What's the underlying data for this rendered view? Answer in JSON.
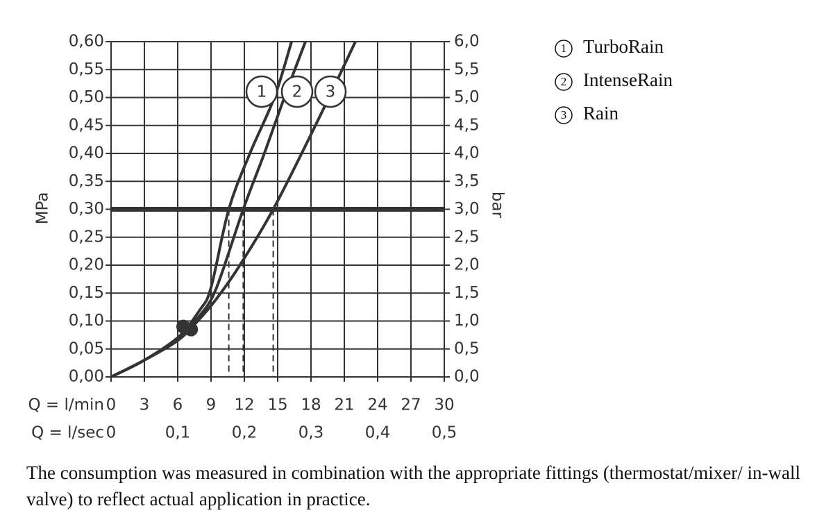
{
  "chart_data": {
    "type": "line",
    "color": "#333333",
    "xlabel": "Q = l/min",
    "x2label": "Q = l/sec",
    "ylabel": "MPa",
    "y2label": "bar",
    "xlim": [
      0,
      30
    ],
    "xticks": [
      0,
      3,
      6,
      9,
      12,
      15,
      18,
      21,
      24,
      27,
      30
    ],
    "x2lim": [
      0,
      0.5
    ],
    "x2ticks": [
      {
        "value": 0,
        "label": "0"
      },
      {
        "value": 0.1,
        "label": "0,1"
      },
      {
        "value": 0.2,
        "label": "0,2"
      },
      {
        "value": 0.3,
        "label": "0,3"
      },
      {
        "value": 0.4,
        "label": "0,4"
      },
      {
        "value": 0.5,
        "label": "0,5"
      }
    ],
    "ylim": [
      0,
      0.6
    ],
    "yticks": [
      {
        "value": 0,
        "label": "0,00"
      },
      {
        "value": 0.05,
        "label": "0,05"
      },
      {
        "value": 0.1,
        "label": "0,10"
      },
      {
        "value": 0.15,
        "label": "0,15"
      },
      {
        "value": 0.2,
        "label": "0,20"
      },
      {
        "value": 0.25,
        "label": "0,25"
      },
      {
        "value": 0.3,
        "label": "0,30"
      },
      {
        "value": 0.35,
        "label": "0,35"
      },
      {
        "value": 0.4,
        "label": "0,40"
      },
      {
        "value": 0.45,
        "label": "0,45"
      },
      {
        "value": 0.5,
        "label": "0,50"
      },
      {
        "value": 0.55,
        "label": "0,55"
      },
      {
        "value": 0.6,
        "label": "0,60"
      }
    ],
    "y2lim": [
      0,
      6
    ],
    "y2ticks": [
      {
        "value": 0,
        "label": "0,0"
      },
      {
        "value": 0.5,
        "label": "0,5"
      },
      {
        "value": 1,
        "label": "1,0"
      },
      {
        "value": 1.5,
        "label": "1,5"
      },
      {
        "value": 2,
        "label": "2,0"
      },
      {
        "value": 2.5,
        "label": "2,5"
      },
      {
        "value": 3,
        "label": "3,0"
      },
      {
        "value": 3.5,
        "label": "3,5"
      },
      {
        "value": 4,
        "label": "4,0"
      },
      {
        "value": 4.5,
        "label": "4,5"
      },
      {
        "value": 5,
        "label": "5,0"
      },
      {
        "value": 5.5,
        "label": "5,5"
      },
      {
        "value": 6,
        "label": "6,0"
      }
    ],
    "grid": true,
    "reference_line": 0.3,
    "drop_lines_x": [
      10.6,
      11.9,
      14.6
    ],
    "markers": {
      "x": [
        6.5,
        7.2
      ],
      "y": [
        0.09,
        0.085
      ]
    },
    "curve_labels": [
      "1",
      "2",
      "3"
    ],
    "series": [
      {
        "name": "TurboRain",
        "x": [
          0,
          3,
          6,
          8,
          9,
          10.6,
          12.5,
          14.7,
          16.25
        ],
        "values": [
          0,
          0.03,
          0.07,
          0.12,
          0.16,
          0.3,
          0.4,
          0.5,
          0.6
        ]
      },
      {
        "name": "IntenseRain",
        "x": [
          0,
          3,
          6,
          8,
          9.5,
          11.9,
          13.8,
          15.6,
          17.5
        ],
        "values": [
          0,
          0.03,
          0.07,
          0.11,
          0.16,
          0.3,
          0.4,
          0.5,
          0.6
        ]
      },
      {
        "name": "Rain",
        "x": [
          0,
          3,
          6,
          7.8,
          9.5,
          11.6,
          14.6,
          18.4,
          22
        ],
        "values": [
          0,
          0.03,
          0.065,
          0.1,
          0.14,
          0.2,
          0.3,
          0.45,
          0.6
        ]
      }
    ],
    "note": "The consumption was measured in combination with the appropriate fittings (thermostat/mixer/ in-wall valve) to reflect actual application in practice."
  }
}
